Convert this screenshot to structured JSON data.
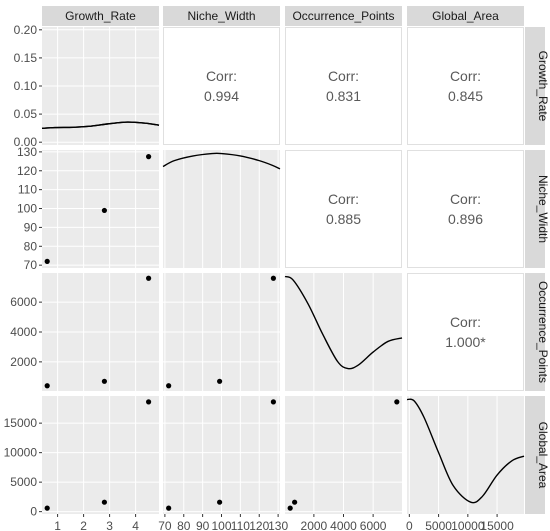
{
  "chart_data": {
    "type": "scatter",
    "variables": [
      "Growth_Rate",
      "Niche_Width",
      "Occurrence_Points",
      "Global_Area"
    ],
    "observations": {
      "Growth_Rate": [
        0.6,
        2.8,
        4.5
      ],
      "Niche_Width": [
        72,
        99,
        127.5
      ],
      "Occurrence_Points": [
        400,
        700,
        7600
      ],
      "Global_Area": [
        600,
        1600,
        18600
      ]
    },
    "correlations": [
      {
        "row": "Growth_Rate",
        "col": "Niche_Width",
        "label": "Corr:",
        "value": "0.994"
      },
      {
        "row": "Growth_Rate",
        "col": "Occurrence_Points",
        "label": "Corr:",
        "value": "0.831"
      },
      {
        "row": "Growth_Rate",
        "col": "Global_Area",
        "label": "Corr:",
        "value": "0.845"
      },
      {
        "row": "Niche_Width",
        "col": "Occurrence_Points",
        "label": "Corr:",
        "value": "0.885"
      },
      {
        "row": "Niche_Width",
        "col": "Global_Area",
        "label": "Corr:",
        "value": "0.896"
      },
      {
        "row": "Occurrence_Points",
        "col": "Global_Area",
        "label": "Corr:",
        "value": "1.000*"
      }
    ],
    "x_axes": {
      "Growth_Rate": {
        "range": [
          0.4,
          4.9
        ],
        "ticks": [
          1,
          2,
          3,
          4
        ],
        "labels": [
          "1",
          "2",
          "3",
          "4"
        ]
      },
      "Niche_Width": {
        "range": [
          69,
          131
        ],
        "ticks": [
          70,
          80,
          90,
          100,
          110,
          120,
          130
        ],
        "labels": [
          "70",
          "80",
          "90",
          "100",
          "110",
          "120",
          "130"
        ]
      },
      "Occurrence_Points": {
        "range": [
          50,
          7950
        ],
        "ticks": [
          2000,
          4000,
          6000
        ],
        "labels": [
          "2000",
          "4000",
          "6000"
        ]
      },
      "Global_Area": {
        "range": [
          -400,
          19600
        ],
        "ticks": [
          0,
          5000,
          10000,
          15000
        ],
        "labels": [
          "0",
          "5000",
          "10000",
          "15000"
        ]
      }
    },
    "y_axes": {
      "Growth_Rate": {
        "range": [
          -0.005,
          0.205
        ],
        "ticks": [
          0,
          0.05,
          0.1,
          0.15,
          0.2
        ],
        "labels": [
          "0.00",
          "0.05",
          "0.10",
          "0.15",
          "0.20"
        ]
      },
      "Niche_Width": {
        "range": [
          68.5,
          131
        ],
        "ticks": [
          70,
          80,
          90,
          100,
          110,
          120,
          130
        ],
        "labels": [
          "70",
          "80",
          "90",
          "100",
          "110",
          "120",
          "130"
        ]
      },
      "Occurrence_Points": {
        "range": [
          50,
          7950
        ],
        "ticks": [
          2000,
          4000,
          6000
        ],
        "labels": [
          "2000",
          "4000",
          "6000"
        ]
      },
      "Global_Area": {
        "range": [
          -400,
          19600
        ],
        "ticks": [
          0,
          5000,
          10000,
          15000
        ],
        "labels": [
          "0",
          "5000",
          "10000",
          "15000"
        ]
      }
    },
    "density": {
      "Growth_Rate": [
        [
          0.4,
          0.141
        ],
        [
          0.9,
          0.148
        ],
        [
          1.6,
          0.15
        ],
        [
          2.2,
          0.158
        ],
        [
          2.9,
          0.178
        ],
        [
          3.4,
          0.19
        ],
        [
          3.7,
          0.194
        ],
        [
          4.1,
          0.19
        ],
        [
          4.5,
          0.182
        ],
        [
          4.9,
          0.168
        ]
      ],
      "Niche_Width": [
        [
          69,
          0.86
        ],
        [
          75,
          0.91
        ],
        [
          85,
          0.95
        ],
        [
          95,
          0.97
        ],
        [
          100,
          0.97
        ],
        [
          110,
          0.95
        ],
        [
          120,
          0.91
        ],
        [
          127,
          0.87
        ],
        [
          131,
          0.84
        ]
      ],
      "Occurrence_Points": [
        [
          50,
          0.97
        ],
        [
          600,
          0.94
        ],
        [
          1600,
          0.74
        ],
        [
          2600,
          0.48
        ],
        [
          3600,
          0.25
        ],
        [
          4300,
          0.19
        ],
        [
          5000,
          0.22
        ],
        [
          6000,
          0.33
        ],
        [
          7000,
          0.42
        ],
        [
          7950,
          0.45
        ]
      ],
      "Global_Area": [
        [
          -400,
          0.97
        ],
        [
          800,
          0.96
        ],
        [
          2500,
          0.82
        ],
        [
          5000,
          0.52
        ],
        [
          7500,
          0.24
        ],
        [
          10500,
          0.1
        ],
        [
          12500,
          0.15
        ],
        [
          15000,
          0.33
        ],
        [
          17500,
          0.45
        ],
        [
          19600,
          0.49
        ]
      ]
    },
    "grid": true,
    "colors": {
      "panel_bg": "#ebebeb",
      "strip_bg": "#d9d9d9",
      "grid": "#ffffff",
      "point": "#000000",
      "corr_text": "#595959",
      "axis_text": "#4d4d4d"
    }
  }
}
